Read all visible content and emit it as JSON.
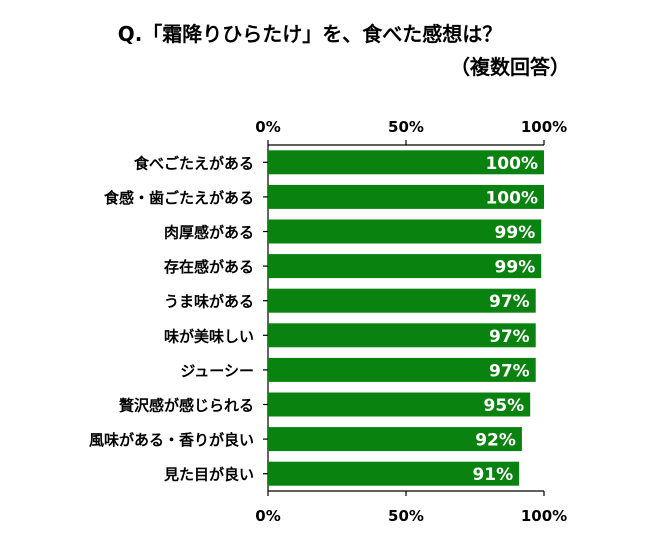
{
  "chart_data": {
    "type": "bar",
    "orientation": "horizontal",
    "title": "Q.「霜降りひらたけ」を、食べた感想は？",
    "subtitle": "（複数回答）",
    "categories": [
      "食べごたえがある",
      "食感・歯ごたえがある",
      "肉厚感がある",
      "存在感がある",
      "うま味がある",
      "味が美味しい",
      "ジューシー",
      "贅沢感が感じられる",
      "風味がある・香りが良い",
      "見た目が良い"
    ],
    "values": [
      100,
      100,
      99,
      99,
      97,
      97,
      97,
      95,
      92,
      91
    ],
    "data_labels": [
      "100%",
      "100%",
      "99%",
      "99%",
      "97%",
      "97%",
      "97%",
      "95%",
      "92%",
      "91%"
    ],
    "xlim": [
      0,
      100
    ],
    "x_ticks": [
      0,
      50,
      100
    ],
    "x_tick_labels": [
      "0%",
      "50%",
      "100%"
    ],
    "x_axis_positions": [
      "top",
      "bottom"
    ],
    "grid": false,
    "colors": {
      "bar": "#0a8210",
      "label": "#ffffff",
      "axis": "#000000"
    }
  }
}
